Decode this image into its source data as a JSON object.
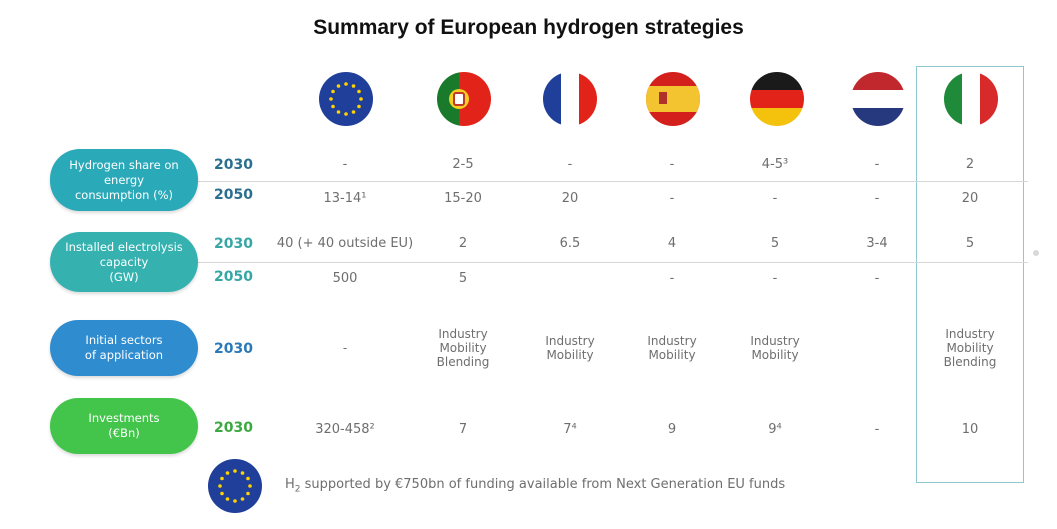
{
  "title": "Summary of European hydrogen strategies",
  "flags": [
    {
      "name": "eu-flag-icon"
    },
    {
      "name": "portugal-flag-icon"
    },
    {
      "name": "france-flag-icon"
    },
    {
      "name": "spain-flag-icon"
    },
    {
      "name": "germany-flag-icon"
    },
    {
      "name": "netherlands-flag-icon"
    },
    {
      "name": "italy-flag-icon"
    }
  ],
  "colors": {
    "share": "#2aa9b9",
    "electrolysis": "#35b1b0",
    "sectors": "#2e8ccf",
    "investments": "#43c44b",
    "highlight_border": "#8fc6cf"
  },
  "chart_data": {
    "type": "table",
    "title": "Summary of European hydrogen strategies",
    "rows": [
      {
        "category": "Hydrogen share on energy consumption (%)",
        "label_lines": [
          "Hydrogen share on",
          "energy",
          "consumption (%)"
        ],
        "years": [
          {
            "year": "2030",
            "values": [
              "-",
              "2-5",
              "-",
              "-",
              "4-5³",
              "-",
              "2"
            ]
          },
          {
            "year": "2050",
            "values": [
              "13-14¹",
              "15-20",
              "20",
              "-",
              "-",
              "-",
              "20"
            ]
          }
        ]
      },
      {
        "category": "Installed electrolysis capacity (GW)",
        "label_lines": [
          "Installed electrolysis",
          "capacity",
          "(GW)"
        ],
        "years": [
          {
            "year": "2030",
            "values": [
              "40 (+ 40 outside EU)",
              "2",
              "6.5",
              "4",
              "5",
              "3-4",
              "5"
            ]
          },
          {
            "year": "2050",
            "values": [
              "500",
              "5",
              "",
              "-",
              "-",
              "-",
              ""
            ]
          }
        ]
      },
      {
        "category": "Initial sectors of application",
        "label_lines": [
          "Initial sectors",
          "of application"
        ],
        "years": [
          {
            "year": "2030",
            "values": [
              [
                "-"
              ],
              [
                "Industry",
                "Mobility",
                "Blending"
              ],
              [
                "Industry",
                "Mobility"
              ],
              [
                "Industry",
                "Mobility"
              ],
              [
                "Industry",
                "Mobility"
              ],
              [
                ""
              ],
              [
                "Industry",
                "Mobility",
                "Blending"
              ]
            ]
          }
        ]
      },
      {
        "category": "Investments (€Bn)",
        "label_lines": [
          "Investments",
          "(€Bn)"
        ],
        "years": [
          {
            "year": "2030",
            "values": [
              "320-458²",
              "7",
              "7⁴",
              "9",
              "9⁴",
              "-",
              "10"
            ]
          }
        ]
      }
    ],
    "footnote_pre": "H",
    "footnote_sub": "2",
    "footnote_post": " supported by €750bn of funding available from Next Generation EU funds"
  }
}
